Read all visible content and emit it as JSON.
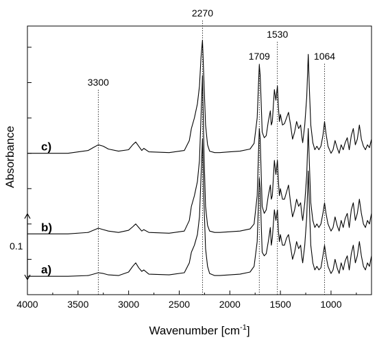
{
  "chart_data": {
    "type": "line",
    "title": "",
    "xlabel": "Wavenumber [cm",
    "xlabel_sup": "-1",
    "xlabel_suffix": "]",
    "ylabel": "Absorbance",
    "xlim": [
      4000,
      600
    ],
    "x_reversed": true,
    "x_ticks": [
      "4000",
      "3500",
      "3000",
      "2500",
      "2000",
      "1500",
      "1000"
    ],
    "x_tick_values": [
      4000,
      3500,
      3000,
      2500,
      2000,
      1500,
      1000
    ],
    "ylim": [
      0,
      3.8
    ],
    "y_ticks_labeled": false,
    "grid": false,
    "legend": "none",
    "line_color": "#000000",
    "scale_bar": {
      "label": "0.1",
      "value": 0.1
    },
    "peak_markers": [
      {
        "label": "3300",
        "x": 3300
      },
      {
        "label": "2270",
        "x": 2270
      },
      {
        "label": "1709",
        "x": 1709
      },
      {
        "label": "1530",
        "x": 1530
      },
      {
        "label": "1064",
        "x": 1064
      }
    ],
    "series": [
      {
        "label": "a)",
        "x": [
          4000,
          3800,
          3600,
          3400,
          3350,
          3300,
          3250,
          3200,
          3100,
          3000,
          2960,
          2930,
          2900,
          2870,
          2850,
          2800,
          2600,
          2450,
          2400,
          2380,
          2350,
          2320,
          2300,
          2285,
          2270,
          2255,
          2240,
          2220,
          2200,
          2150,
          2100,
          2000,
          1900,
          1800,
          1760,
          1730,
          1715,
          1709,
          1700,
          1690,
          1680,
          1660,
          1640,
          1620,
          1600,
          1590,
          1580,
          1560,
          1545,
          1530,
          1520,
          1510,
          1500,
          1480,
          1460,
          1440,
          1420,
          1400,
          1380,
          1360,
          1340,
          1320,
          1300,
          1290,
          1280,
          1260,
          1240,
          1225,
          1215,
          1200,
          1180,
          1160,
          1140,
          1120,
          1100,
          1080,
          1064,
          1050,
          1030,
          1000,
          980,
          960,
          940,
          920,
          900,
          880,
          860,
          840,
          820,
          800,
          780,
          760,
          740,
          720,
          700,
          680,
          660,
          640,
          620,
          600
        ],
        "y": [
          0.26,
          0.26,
          0.26,
          0.27,
          0.29,
          0.31,
          0.3,
          0.28,
          0.27,
          0.32,
          0.4,
          0.45,
          0.38,
          0.33,
          0.35,
          0.29,
          0.28,
          0.31,
          0.45,
          0.6,
          0.7,
          0.85,
          1.1,
          1.65,
          2.2,
          1.3,
          0.65,
          0.4,
          0.3,
          0.27,
          0.27,
          0.28,
          0.29,
          0.32,
          0.4,
          0.75,
          1.4,
          1.65,
          1.5,
          1.0,
          0.6,
          0.55,
          0.58,
          0.75,
          0.95,
          0.7,
          0.8,
          1.2,
          1.05,
          1.2,
          0.9,
          0.75,
          0.85,
          0.7,
          0.7,
          0.8,
          0.85,
          0.68,
          0.5,
          0.6,
          0.75,
          0.65,
          0.7,
          0.55,
          0.45,
          0.7,
          1.1,
          1.75,
          1.3,
          0.7,
          0.45,
          0.35,
          0.4,
          0.35,
          0.38,
          0.55,
          0.7,
          0.55,
          0.4,
          0.3,
          0.35,
          0.5,
          0.38,
          0.3,
          0.45,
          0.35,
          0.48,
          0.55,
          0.35,
          0.58,
          0.7,
          0.45,
          0.55,
          0.75,
          0.55,
          0.4,
          0.35,
          0.45,
          0.4,
          0.55
        ]
      },
      {
        "label": "b)",
        "x": [
          4000,
          3800,
          3600,
          3400,
          3350,
          3300,
          3250,
          3200,
          3100,
          3000,
          2960,
          2930,
          2900,
          2870,
          2850,
          2800,
          2600,
          2450,
          2400,
          2380,
          2350,
          2320,
          2300,
          2285,
          2270,
          2255,
          2240,
          2220,
          2200,
          2150,
          2100,
          2000,
          1900,
          1800,
          1760,
          1730,
          1715,
          1709,
          1700,
          1690,
          1680,
          1660,
          1640,
          1620,
          1600,
          1590,
          1580,
          1560,
          1545,
          1530,
          1520,
          1510,
          1500,
          1480,
          1460,
          1440,
          1420,
          1400,
          1380,
          1360,
          1340,
          1320,
          1300,
          1290,
          1280,
          1260,
          1240,
          1225,
          1215,
          1200,
          1180,
          1160,
          1140,
          1120,
          1100,
          1080,
          1064,
          1050,
          1030,
          1000,
          980,
          960,
          940,
          920,
          900,
          880,
          860,
          840,
          820,
          800,
          780,
          760,
          740,
          720,
          700,
          680,
          660,
          640,
          620,
          600
        ],
        "y": [
          0.86,
          0.86,
          0.86,
          0.88,
          0.91,
          0.94,
          0.92,
          0.9,
          0.88,
          0.91,
          0.96,
          1.0,
          0.95,
          0.9,
          0.92,
          0.88,
          0.87,
          0.9,
          1.05,
          1.25,
          1.4,
          1.6,
          1.9,
          2.5,
          3.1,
          2.0,
          1.25,
          0.98,
          0.9,
          0.88,
          0.88,
          0.89,
          0.9,
          0.93,
          1.0,
          1.4,
          2.1,
          2.35,
          2.2,
          1.7,
          1.25,
          1.15,
          1.2,
          1.4,
          1.55,
          1.35,
          1.4,
          1.9,
          1.7,
          1.9,
          1.6,
          1.4,
          1.5,
          1.35,
          1.35,
          1.45,
          1.55,
          1.3,
          1.1,
          1.2,
          1.35,
          1.25,
          1.3,
          1.15,
          1.05,
          1.3,
          1.7,
          2.35,
          1.9,
          1.3,
          1.05,
          0.95,
          1.0,
          0.95,
          1.0,
          1.15,
          1.3,
          1.15,
          1.0,
          0.9,
          0.95,
          1.1,
          0.98,
          0.9,
          1.05,
          0.95,
          1.08,
          1.15,
          0.95,
          1.2,
          1.3,
          1.05,
          1.15,
          1.35,
          1.15,
          1.0,
          0.95,
          1.05,
          1.0,
          1.15
        ]
      },
      {
        "label": "c)",
        "x": [
          4000,
          3800,
          3600,
          3400,
          3350,
          3300,
          3250,
          3200,
          3100,
          3000,
          2960,
          2930,
          2900,
          2870,
          2850,
          2800,
          2600,
          2450,
          2400,
          2380,
          2350,
          2320,
          2300,
          2285,
          2270,
          2255,
          2240,
          2220,
          2200,
          2150,
          2100,
          2000,
          1900,
          1800,
          1760,
          1730,
          1715,
          1709,
          1700,
          1690,
          1680,
          1660,
          1640,
          1620,
          1600,
          1590,
          1580,
          1560,
          1545,
          1530,
          1520,
          1510,
          1500,
          1480,
          1460,
          1440,
          1420,
          1400,
          1380,
          1360,
          1340,
          1320,
          1300,
          1290,
          1280,
          1260,
          1240,
          1225,
          1215,
          1200,
          1180,
          1160,
          1140,
          1120,
          1100,
          1080,
          1064,
          1050,
          1030,
          1000,
          980,
          960,
          940,
          920,
          900,
          880,
          860,
          840,
          820,
          800,
          780,
          760,
          740,
          720,
          700,
          680,
          660,
          640,
          620,
          600
        ],
        "y": [
          2.0,
          2.0,
          2.0,
          2.04,
          2.08,
          2.12,
          2.1,
          2.06,
          2.03,
          2.05,
          2.12,
          2.16,
          2.1,
          2.04,
          2.07,
          2.02,
          2.01,
          2.04,
          2.18,
          2.35,
          2.5,
          2.7,
          2.95,
          3.35,
          3.6,
          3.0,
          2.4,
          2.12,
          2.03,
          2.01,
          2.01,
          2.02,
          2.03,
          2.06,
          2.14,
          2.5,
          3.05,
          3.25,
          3.1,
          2.7,
          2.3,
          2.22,
          2.25,
          2.45,
          2.6,
          2.4,
          2.45,
          2.9,
          2.75,
          2.95,
          2.65,
          2.45,
          2.55,
          2.4,
          2.42,
          2.5,
          2.58,
          2.4,
          2.2,
          2.3,
          2.45,
          2.35,
          2.4,
          2.25,
          2.15,
          2.4,
          2.8,
          3.4,
          2.95,
          2.4,
          2.15,
          2.05,
          2.1,
          2.05,
          2.1,
          2.25,
          2.45,
          2.28,
          2.1,
          2.0,
          2.05,
          2.18,
          2.08,
          2.0,
          2.12,
          2.05,
          2.15,
          2.22,
          2.05,
          2.25,
          2.35,
          2.12,
          2.2,
          2.4,
          2.2,
          2.1,
          2.05,
          2.12,
          2.08,
          2.2
        ]
      }
    ]
  }
}
